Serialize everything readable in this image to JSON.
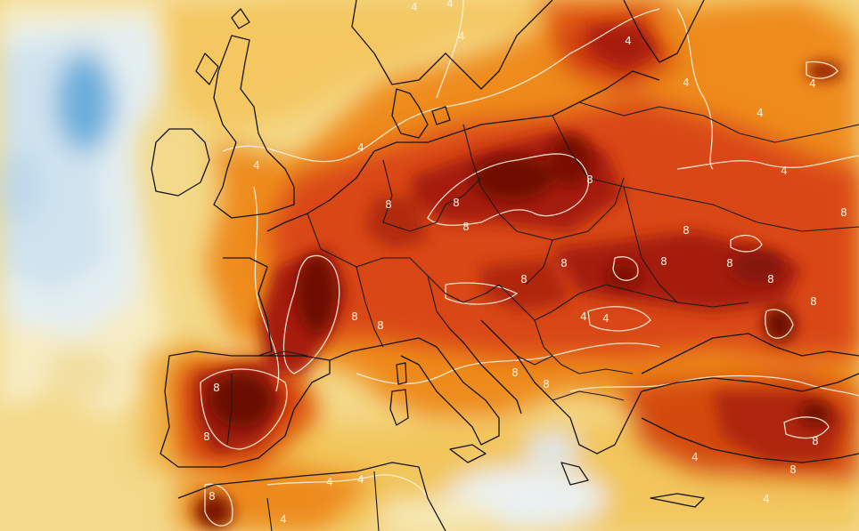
{
  "map": {
    "region": "Europe",
    "contour_labels": [
      "4",
      "8"
    ]
  },
  "colors": {
    "cold_blue": "#5ba7d6",
    "light_blue": "#dcecf5",
    "pale_cream": "#f9efc7",
    "yellow": "#f3cf6a",
    "orange": "#ee8a1a",
    "red_orange": "#dd4a12",
    "red": "#b8250b",
    "dark_red": "#6e0d06",
    "contour_line": "#fdf1df",
    "border_line": "#141414"
  }
}
